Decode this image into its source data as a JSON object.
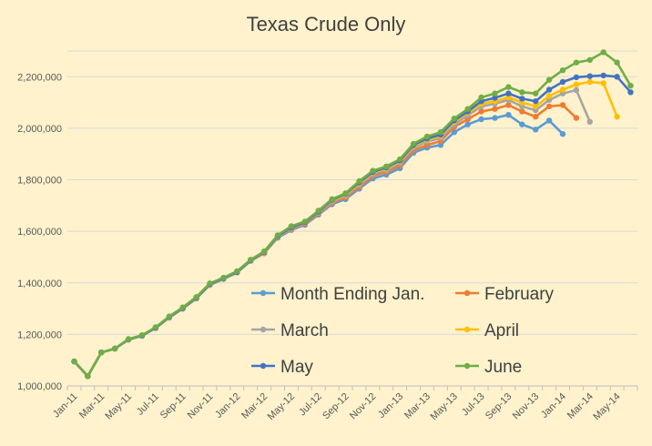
{
  "chart_data": {
    "type": "line",
    "title": "Texas Crude Only",
    "xlabel": "",
    "ylabel": "",
    "x_tick_labels": [
      "Jan-11",
      "Mar-11",
      "May-11",
      "Jul-11",
      "Sep-11",
      "Nov-11",
      "Jan-12",
      "Mar-12",
      "May-12",
      "Jul-12",
      "Sep-12",
      "Nov-12",
      "Jan-13",
      "Mar-13",
      "May-13",
      "Jul-13",
      "Sep-13",
      "Nov-13",
      "Jan-14",
      "Mar-14",
      "May-14"
    ],
    "x_months": [
      "2011-01",
      "2011-02",
      "2011-03",
      "2011-04",
      "2011-05",
      "2011-06",
      "2011-07",
      "2011-08",
      "2011-09",
      "2011-10",
      "2011-11",
      "2011-12",
      "2012-01",
      "2012-02",
      "2012-03",
      "2012-04",
      "2012-05",
      "2012-06",
      "2012-07",
      "2012-08",
      "2012-09",
      "2012-10",
      "2012-11",
      "2012-12",
      "2013-01",
      "2013-02",
      "2013-03",
      "2013-04",
      "2013-05",
      "2013-06",
      "2013-07",
      "2013-08",
      "2013-09",
      "2013-10",
      "2013-11",
      "2013-12",
      "2014-01",
      "2014-02",
      "2014-03",
      "2014-04",
      "2014-05",
      "2014-06"
    ],
    "y_tick_labels": [
      "1,000,000",
      "1,200,000",
      "1,400,000",
      "1,600,000",
      "1,800,000",
      "2,000,000",
      "2,200,000"
    ],
    "ylim": [
      1000000,
      2300000
    ],
    "grid": true,
    "legend_position": "bottom-right-inside",
    "series": [
      {
        "name": "Month Ending Jan.",
        "color": "#5b9bd5",
        "values": [
          1095000,
          1038000,
          1130000,
          1145000,
          1180000,
          1195000,
          1225000,
          1265000,
          1300000,
          1340000,
          1392000,
          1415000,
          1440000,
          1485000,
          1515000,
          1575000,
          1605000,
          1625000,
          1665000,
          1705000,
          1725000,
          1765000,
          1805000,
          1820000,
          1845000,
          1905000,
          1925000,
          1935000,
          1985000,
          2015000,
          2035000,
          2040000,
          2052000,
          2015000,
          1995000,
          2030000,
          1978000,
          null,
          null,
          null,
          null,
          null
        ]
      },
      {
        "name": "February",
        "color": "#ed7d31",
        "values": [
          1095000,
          1038000,
          1130000,
          1145000,
          1180000,
          1195000,
          1225000,
          1265000,
          1300000,
          1340000,
          1392000,
          1415000,
          1440000,
          1485000,
          1515000,
          1578000,
          1608000,
          1628000,
          1668000,
          1710000,
          1732000,
          1772000,
          1815000,
          1830000,
          1855000,
          1915000,
          1935000,
          1950000,
          2005000,
          2035000,
          2065000,
          2075000,
          2090000,
          2065000,
          2045000,
          2085000,
          2090000,
          2040000,
          null,
          null,
          null,
          null
        ]
      },
      {
        "name": "March",
        "color": "#a5a5a5",
        "values": [
          1095000,
          1038000,
          1130000,
          1145000,
          1180000,
          1195000,
          1225000,
          1265000,
          1300000,
          1340000,
          1392000,
          1415000,
          1440000,
          1485000,
          1518000,
          1580000,
          1612000,
          1632000,
          1672000,
          1715000,
          1738000,
          1780000,
          1822000,
          1838000,
          1865000,
          1925000,
          1948000,
          1962000,
          2015000,
          2050000,
          2085000,
          2095000,
          2110000,
          2085000,
          2070000,
          2110000,
          2135000,
          2148000,
          2025000,
          null,
          null,
          null
        ]
      },
      {
        "name": "April",
        "color": "#ffc000",
        "values": [
          1095000,
          1038000,
          1130000,
          1145000,
          1180000,
          1195000,
          1225000,
          1268000,
          1302000,
          1342000,
          1395000,
          1418000,
          1442000,
          1488000,
          1520000,
          1582000,
          1615000,
          1635000,
          1676000,
          1720000,
          1742000,
          1786000,
          1828000,
          1844000,
          1872000,
          1932000,
          1955000,
          1970000,
          2025000,
          2060000,
          2095000,
          2105000,
          2120000,
          2100000,
          2085000,
          2125000,
          2150000,
          2170000,
          2180000,
          2175000,
          2045000,
          null
        ]
      },
      {
        "name": "May",
        "color": "#4472c4",
        "values": [
          1095000,
          1038000,
          1130000,
          1145000,
          1180000,
          1195000,
          1225000,
          1268000,
          1302000,
          1342000,
          1395000,
          1418000,
          1442000,
          1488000,
          1520000,
          1582000,
          1615000,
          1635000,
          1676000,
          1722000,
          1745000,
          1790000,
          1830000,
          1848000,
          1875000,
          1935000,
          1960000,
          1975000,
          2030000,
          2065000,
          2105000,
          2118000,
          2135000,
          2115000,
          2105000,
          2150000,
          2180000,
          2198000,
          2202000,
          2205000,
          2200000,
          2140000
        ]
      },
      {
        "name": "June",
        "color": "#70ad47",
        "values": [
          1095000,
          1038000,
          1130000,
          1145000,
          1182000,
          1197000,
          1228000,
          1270000,
          1305000,
          1345000,
          1398000,
          1420000,
          1445000,
          1490000,
          1522000,
          1585000,
          1620000,
          1638000,
          1680000,
          1725000,
          1748000,
          1795000,
          1835000,
          1852000,
          1880000,
          1940000,
          1968000,
          1985000,
          2038000,
          2075000,
          2120000,
          2135000,
          2160000,
          2140000,
          2135000,
          2188000,
          2225000,
          2255000,
          2265000,
          2295000,
          2255000,
          2165000
        ]
      }
    ]
  }
}
